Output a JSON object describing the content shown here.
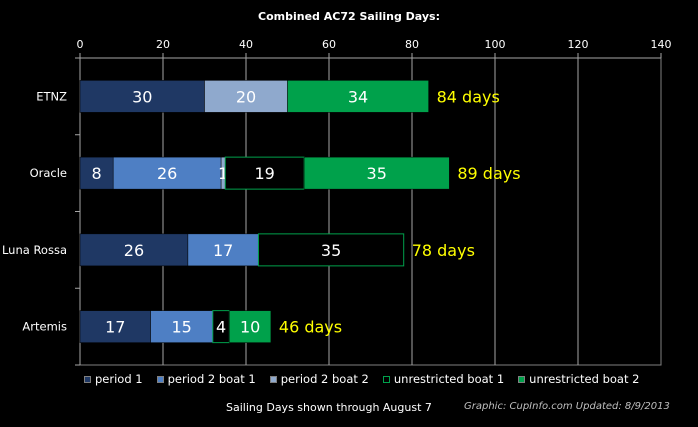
{
  "chart_data": {
    "type": "bar",
    "orientation": "horizontal",
    "stacked": true,
    "title": "Combined AC72  Sailing Days:",
    "categories": [
      "ETNZ",
      "Oracle",
      "Luna Rossa",
      "Artemis"
    ],
    "series": [
      {
        "name": "period 1",
        "values": [
          30,
          8,
          26,
          17
        ],
        "color": "#1f3864",
        "labels": [
          "30",
          "8",
          "26",
          "17"
        ]
      },
      {
        "name": "period 2 boat 1",
        "values": [
          0,
          26,
          17,
          15
        ],
        "color": "#4e7fc4",
        "labels": [
          "",
          "26",
          "17",
          "15"
        ]
      },
      {
        "name": "period 2 boat 2",
        "values": [
          20,
          1,
          0,
          0
        ],
        "color": "#8fa9cd",
        "labels": [
          "20",
          "1",
          "",
          ""
        ]
      },
      {
        "name": "unrestricted boat 1",
        "values": [
          0,
          19,
          35,
          4
        ],
        "color": "#000000",
        "border": "#00a14b",
        "labels": [
          "",
          "19",
          "35",
          "4"
        ]
      },
      {
        "name": "unrestricted boat 2",
        "values": [
          34,
          35,
          0,
          10
        ],
        "color": "#00a14b",
        "labels": [
          "34",
          "35",
          "",
          "10"
        ]
      }
    ],
    "totals": [
      "84 days",
      "89 days",
      "78 days",
      "46 days"
    ],
    "total_color": "#ffff00",
    "xlim": [
      0,
      140
    ],
    "xticks": [
      0,
      20,
      40,
      60,
      80,
      100,
      120,
      140
    ],
    "grid": "vertical",
    "legend": "bottom"
  },
  "footer": {
    "note": "Sailing Days shown through August 7",
    "credit": "Graphic: CupInfo.com    Updated:  8/9/2013"
  }
}
